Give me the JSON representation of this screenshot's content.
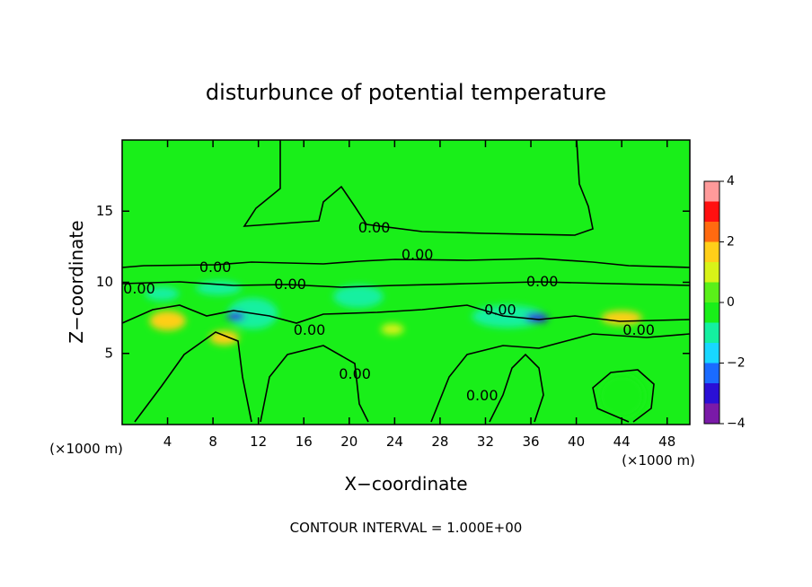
{
  "chart_data": {
    "type": "heatmap",
    "title": "disturbunce of potential temperature",
    "xlabel": "X−coordinate",
    "ylabel": "Z−coordinate",
    "x_unit_label_left": "(×1000 m)",
    "x_unit_label_right": "(×1000 m)",
    "x_ticks": [
      4,
      8,
      12,
      16,
      20,
      24,
      28,
      32,
      36,
      40,
      44,
      48
    ],
    "y_ticks": [
      5,
      10,
      15
    ],
    "xlim": [
      0,
      50
    ],
    "ylim": [
      0,
      20
    ],
    "colorbar": {
      "ticks": [
        -4,
        -2,
        0,
        2,
        4
      ],
      "range": [
        -4,
        4
      ],
      "colors": [
        "#7a1aa8",
        "#2a0fd6",
        "#1a6bff",
        "#18d7ff",
        "#14f0a0",
        "#19ef19",
        "#5af019",
        "#d8f318",
        "#ffcf19",
        "#ff6a10",
        "#ff1010",
        "#ff9a9a"
      ]
    },
    "contour_label": "0.00",
    "contour_labels": [
      {
        "text": "0.00",
        "x": 22.2,
        "y": 13.8
      },
      {
        "text": "0.00",
        "x": 26.0,
        "y": 11.9
      },
      {
        "text": "0.00",
        "x": 8.2,
        "y": 11.0
      },
      {
        "text": "0.00",
        "x": 37.0,
        "y": 10.0
      },
      {
        "text": "0.00",
        "x": 1.5,
        "y": 9.5
      },
      {
        "text": "0.00",
        "x": 14.8,
        "y": 9.8
      },
      {
        "text": "0.00",
        "x": 33.3,
        "y": 8.0
      },
      {
        "text": "0.00",
        "x": 16.5,
        "y": 6.6
      },
      {
        "text": "0.00",
        "x": 45.5,
        "y": 6.6
      },
      {
        "text": "0.00",
        "x": 20.5,
        "y": 3.5
      },
      {
        "text": "0.00",
        "x": 31.7,
        "y": 2.0
      }
    ],
    "anomalies": [
      {
        "x": 4.0,
        "y": 7.3,
        "rx": 1.6,
        "ry": 0.7,
        "value": 1.6
      },
      {
        "x": 9.0,
        "y": 6.1,
        "rx": 1.3,
        "ry": 0.5,
        "value": 1.4
      },
      {
        "x": 23.8,
        "y": 6.7,
        "rx": 1.0,
        "ry": 0.4,
        "value": 1.3
      },
      {
        "x": 44.0,
        "y": 7.5,
        "rx": 1.8,
        "ry": 0.5,
        "value": 1.6
      },
      {
        "x": 8.5,
        "y": 9.6,
        "rx": 2.0,
        "ry": 0.5,
        "value": -0.8
      },
      {
        "x": 11.5,
        "y": 7.8,
        "rx": 2.2,
        "ry": 1.1,
        "value": -1.3
      },
      {
        "x": 10.0,
        "y": 7.6,
        "rx": 0.8,
        "ry": 0.3,
        "value": -3.2
      },
      {
        "x": 20.8,
        "y": 9.0,
        "rx": 2.2,
        "ry": 0.8,
        "value": -1.0
      },
      {
        "x": 34.0,
        "y": 7.6,
        "rx": 3.2,
        "ry": 0.8,
        "value": -1.1
      },
      {
        "x": 36.5,
        "y": 7.5,
        "rx": 1.0,
        "ry": 0.35,
        "value": -3.0
      },
      {
        "x": 3.5,
        "y": 9.2,
        "rx": 1.5,
        "ry": 0.5,
        "value": -1.0
      },
      {
        "x": 44.0,
        "y": 2.0,
        "rx": 2.0,
        "ry": 1.5,
        "value": -0.6
      }
    ],
    "grid": false
  },
  "footer": {
    "contour_interval": "CONTOUR INTERVAL = 1.000E+00"
  }
}
